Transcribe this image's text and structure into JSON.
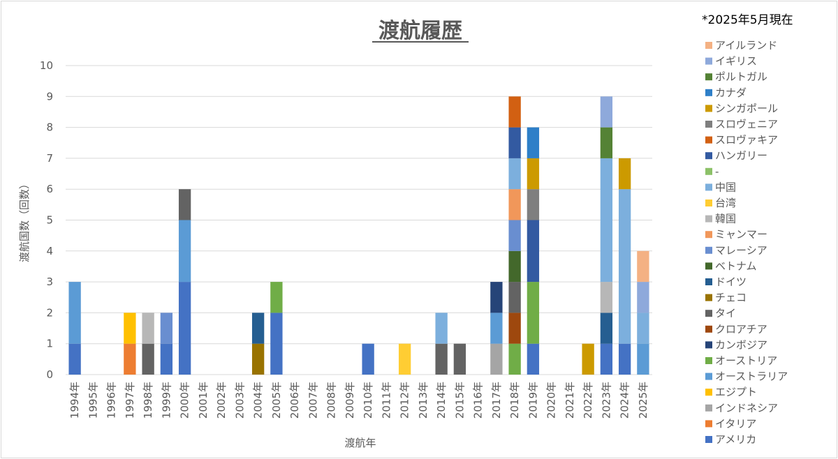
{
  "chart_data": {
    "type": "bar",
    "stacked": true,
    "title": "渡航履歴",
    "note": "*2025年5月現在",
    "xlabel": "渡航年",
    "ylabel": "渡航国数（回数）",
    "ylim": [
      0,
      10
    ],
    "yticks": [
      "0",
      "1",
      "2",
      "3",
      "4",
      "5",
      "6",
      "7",
      "8",
      "9",
      "10"
    ],
    "grid": true,
    "legend_position": "right",
    "categories": [
      "1994年",
      "1995年",
      "1996年",
      "1997年",
      "1998年",
      "1999年",
      "2000年",
      "2001年",
      "2002年",
      "2003年",
      "2004年",
      "2005年",
      "2006年",
      "2007年",
      "2008年",
      "2009年",
      "2010年",
      "2011年",
      "2012年",
      "2013年",
      "2014年",
      "2015年",
      "2016年",
      "2017年",
      "2018年",
      "2019年",
      "2020年",
      "2021年",
      "2022年",
      "2023年",
      "2024年",
      "2025年"
    ],
    "series": [
      {
        "name": "アメリカ",
        "color": "#4472C4",
        "values": [
          1,
          0,
          0,
          0,
          0,
          1,
          3,
          0,
          0,
          0,
          0,
          2,
          0,
          0,
          0,
          0,
          1,
          0,
          0,
          0,
          0,
          0,
          0,
          0,
          0,
          1,
          0,
          0,
          0,
          1,
          1,
          0
        ]
      },
      {
        "name": "イタリア",
        "color": "#ED7D31",
        "values": [
          0,
          0,
          0,
          1,
          0,
          0,
          0,
          0,
          0,
          0,
          0,
          0,
          0,
          0,
          0,
          0,
          0,
          0,
          0,
          0,
          0,
          0,
          0,
          0,
          0,
          0,
          0,
          0,
          0,
          0,
          0,
          0
        ]
      },
      {
        "name": "インドネシア",
        "color": "#A5A5A5",
        "values": [
          0,
          0,
          0,
          0,
          0,
          0,
          0,
          0,
          0,
          0,
          0,
          0,
          0,
          0,
          0,
          0,
          0,
          0,
          0,
          0,
          0,
          0,
          0,
          1,
          0,
          0,
          0,
          0,
          0,
          0,
          0,
          0
        ]
      },
      {
        "name": "エジプト",
        "color": "#FFC000",
        "values": [
          0,
          0,
          0,
          1,
          0,
          0,
          0,
          0,
          0,
          0,
          0,
          0,
          0,
          0,
          0,
          0,
          0,
          0,
          0,
          0,
          0,
          0,
          0,
          0,
          0,
          0,
          0,
          0,
          0,
          0,
          0,
          0
        ]
      },
      {
        "name": "オーストラリア",
        "color": "#5B9BD5",
        "values": [
          2,
          0,
          0,
          0,
          0,
          0,
          2,
          0,
          0,
          0,
          0,
          0,
          0,
          0,
          0,
          0,
          0,
          0,
          0,
          0,
          0,
          0,
          0,
          1,
          0,
          0,
          0,
          0,
          0,
          0,
          0,
          1
        ]
      },
      {
        "name": "オーストリア",
        "color": "#70AD47",
        "values": [
          0,
          0,
          0,
          0,
          0,
          0,
          0,
          0,
          0,
          0,
          0,
          1,
          0,
          0,
          0,
          0,
          0,
          0,
          0,
          0,
          0,
          0,
          0,
          0,
          1,
          2,
          0,
          0,
          0,
          0,
          0,
          0
        ]
      },
      {
        "name": "カンボジア",
        "color": "#264478",
        "values": [
          0,
          0,
          0,
          0,
          0,
          0,
          0,
          0,
          0,
          0,
          0,
          0,
          0,
          0,
          0,
          0,
          0,
          0,
          0,
          0,
          0,
          0,
          0,
          1,
          0,
          0,
          0,
          0,
          0,
          0,
          0,
          0
        ]
      },
      {
        "name": "クロアチア",
        "color": "#9E480E",
        "values": [
          0,
          0,
          0,
          0,
          0,
          0,
          0,
          0,
          0,
          0,
          0,
          0,
          0,
          0,
          0,
          0,
          0,
          0,
          0,
          0,
          0,
          0,
          0,
          0,
          1,
          0,
          0,
          0,
          0,
          0,
          0,
          0
        ]
      },
      {
        "name": "タイ",
        "color": "#636363",
        "values": [
          0,
          0,
          0,
          0,
          1,
          0,
          1,
          0,
          0,
          0,
          0,
          0,
          0,
          0,
          0,
          0,
          0,
          0,
          0,
          0,
          1,
          1,
          0,
          0,
          1,
          0,
          0,
          0,
          0,
          0,
          0,
          0
        ]
      },
      {
        "name": "チェコ",
        "color": "#997300",
        "values": [
          0,
          0,
          0,
          0,
          0,
          0,
          0,
          0,
          0,
          0,
          1,
          0,
          0,
          0,
          0,
          0,
          0,
          0,
          0,
          0,
          0,
          0,
          0,
          0,
          0,
          0,
          0,
          0,
          0,
          0,
          0,
          0
        ]
      },
      {
        "name": "ドイツ",
        "color": "#255E91",
        "values": [
          0,
          0,
          0,
          0,
          0,
          0,
          0,
          0,
          0,
          0,
          1,
          0,
          0,
          0,
          0,
          0,
          0,
          0,
          0,
          0,
          0,
          0,
          0,
          0,
          0,
          0,
          0,
          0,
          0,
          1,
          0,
          0
        ]
      },
      {
        "name": "ベトナム",
        "color": "#43682B",
        "values": [
          0,
          0,
          0,
          0,
          0,
          0,
          0,
          0,
          0,
          0,
          0,
          0,
          0,
          0,
          0,
          0,
          0,
          0,
          0,
          0,
          0,
          0,
          0,
          0,
          1,
          0,
          0,
          0,
          0,
          0,
          0,
          0
        ]
      },
      {
        "name": "マレーシア",
        "color": "#698ED0",
        "values": [
          0,
          0,
          0,
          0,
          0,
          1,
          0,
          0,
          0,
          0,
          0,
          0,
          0,
          0,
          0,
          0,
          0,
          0,
          0,
          0,
          0,
          0,
          0,
          0,
          1,
          0,
          0,
          0,
          0,
          0,
          0,
          0
        ]
      },
      {
        "name": "ミャンマー",
        "color": "#F1975A",
        "values": [
          0,
          0,
          0,
          0,
          0,
          0,
          0,
          0,
          0,
          0,
          0,
          0,
          0,
          0,
          0,
          0,
          0,
          0,
          0,
          0,
          0,
          0,
          0,
          0,
          1,
          0,
          0,
          0,
          0,
          0,
          0,
          0
        ]
      },
      {
        "name": "韓国",
        "color": "#B7B7B7",
        "values": [
          0,
          0,
          0,
          0,
          1,
          0,
          0,
          0,
          0,
          0,
          0,
          0,
          0,
          0,
          0,
          0,
          0,
          0,
          0,
          0,
          0,
          0,
          0,
          0,
          0,
          0,
          0,
          0,
          0,
          1,
          0,
          0
        ]
      },
      {
        "name": "台湾",
        "color": "#FFCD33",
        "values": [
          0,
          0,
          0,
          0,
          0,
          0,
          0,
          0,
          0,
          0,
          0,
          0,
          0,
          0,
          0,
          0,
          0,
          0,
          1,
          0,
          0,
          0,
          0,
          0,
          0,
          0,
          0,
          0,
          0,
          0,
          0,
          0
        ]
      },
      {
        "name": "中国",
        "color": "#7CAFDD",
        "values": [
          0,
          0,
          0,
          0,
          0,
          0,
          0,
          0,
          0,
          0,
          0,
          0,
          0,
          0,
          0,
          0,
          0,
          0,
          0,
          0,
          1,
          0,
          0,
          0,
          1,
          0,
          0,
          0,
          0,
          4,
          5,
          1
        ]
      },
      {
        "name": "-",
        "color": "#8CC168",
        "values": [
          0,
          0,
          0,
          0,
          0,
          0,
          0,
          0,
          0,
          0,
          0,
          0,
          0,
          0,
          0,
          0,
          0,
          0,
          0,
          0,
          0,
          0,
          0,
          0,
          0,
          0,
          0,
          0,
          0,
          0,
          0,
          0
        ]
      },
      {
        "name": "ハンガリー",
        "color": "#335AA1",
        "values": [
          0,
          0,
          0,
          0,
          0,
          0,
          0,
          0,
          0,
          0,
          0,
          0,
          0,
          0,
          0,
          0,
          0,
          0,
          0,
          0,
          0,
          0,
          0,
          0,
          1,
          2,
          0,
          0,
          0,
          0,
          0,
          0
        ]
      },
      {
        "name": "スロヴァキア",
        "color": "#D26012",
        "values": [
          0,
          0,
          0,
          0,
          0,
          0,
          0,
          0,
          0,
          0,
          0,
          0,
          0,
          0,
          0,
          0,
          0,
          0,
          0,
          0,
          0,
          0,
          0,
          0,
          1,
          0,
          0,
          0,
          0,
          0,
          0,
          0
        ]
      },
      {
        "name": "スロヴェニア",
        "color": "#7F7F7F",
        "values": [
          0,
          0,
          0,
          0,
          0,
          0,
          0,
          0,
          0,
          0,
          0,
          0,
          0,
          0,
          0,
          0,
          0,
          0,
          0,
          0,
          0,
          0,
          0,
          0,
          0,
          1,
          0,
          0,
          0,
          0,
          0,
          0
        ]
      },
      {
        "name": "シンガポール",
        "color": "#CC9A00",
        "values": [
          0,
          0,
          0,
          0,
          0,
          0,
          0,
          0,
          0,
          0,
          0,
          0,
          0,
          0,
          0,
          0,
          0,
          0,
          0,
          0,
          0,
          0,
          0,
          0,
          0,
          1,
          0,
          0,
          1,
          0,
          1,
          0
        ]
      },
      {
        "name": "カナダ",
        "color": "#2E7FC8",
        "values": [
          0,
          0,
          0,
          0,
          0,
          0,
          0,
          0,
          0,
          0,
          0,
          0,
          0,
          0,
          0,
          0,
          0,
          0,
          0,
          0,
          0,
          0,
          0,
          0,
          0,
          1,
          0,
          0,
          0,
          0,
          0,
          0
        ]
      },
      {
        "name": "ポルトガル",
        "color": "#548235",
        "values": [
          0,
          0,
          0,
          0,
          0,
          0,
          0,
          0,
          0,
          0,
          0,
          0,
          0,
          0,
          0,
          0,
          0,
          0,
          0,
          0,
          0,
          0,
          0,
          0,
          0,
          0,
          0,
          0,
          0,
          1,
          0,
          0
        ]
      },
      {
        "name": "イギリス",
        "color": "#8EA9DB",
        "values": [
          0,
          0,
          0,
          0,
          0,
          0,
          0,
          0,
          0,
          0,
          0,
          0,
          0,
          0,
          0,
          0,
          0,
          0,
          0,
          0,
          0,
          0,
          0,
          0,
          0,
          0,
          0,
          0,
          0,
          1,
          0,
          1
        ]
      },
      {
        "name": "アイルランド",
        "color": "#F4B183",
        "values": [
          0,
          0,
          0,
          0,
          0,
          0,
          0,
          0,
          0,
          0,
          0,
          0,
          0,
          0,
          0,
          0,
          0,
          0,
          0,
          0,
          0,
          0,
          0,
          0,
          0,
          0,
          0,
          0,
          0,
          0,
          0,
          1
        ]
      }
    ]
  }
}
